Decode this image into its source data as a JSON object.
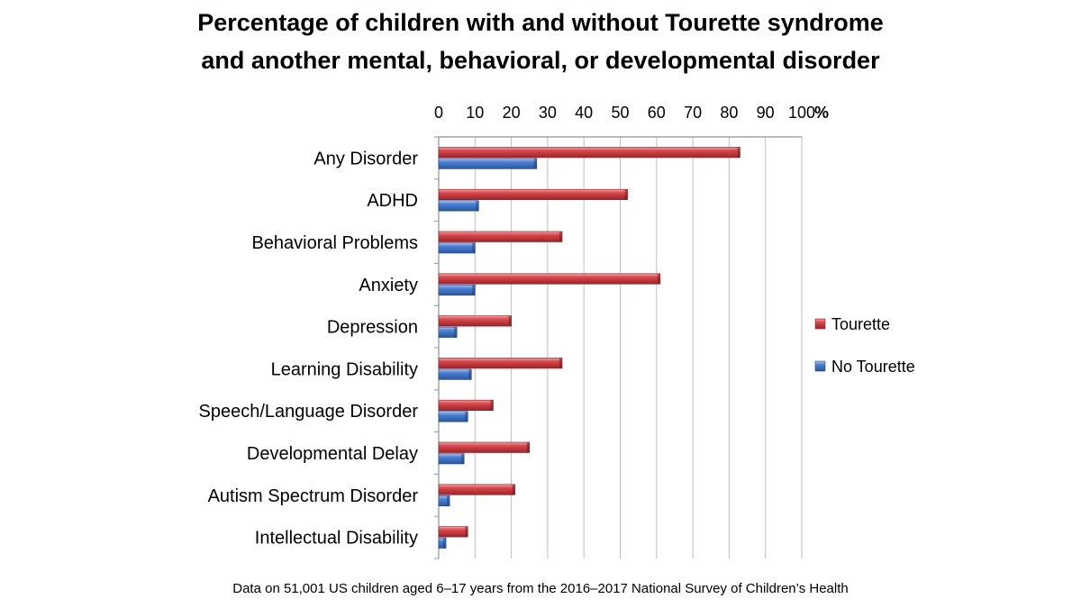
{
  "chart_data": {
    "type": "bar",
    "orientation": "horizontal",
    "title_line1": "Percentage of children with and without Tourette syndrome",
    "title_line2": "and another mental, behavioral, or developmental disorder",
    "unit_label": "%",
    "xlim": [
      0,
      100
    ],
    "ticks": [
      0,
      10,
      20,
      30,
      40,
      50,
      60,
      70,
      80,
      90,
      100
    ],
    "categories": [
      "Any Disorder",
      "ADHD",
      "Behavioral Problems",
      "Anxiety",
      "Depression",
      "Learning Disability",
      "Speech/Language Disorder",
      "Developmental Delay",
      "Autism Spectrum Disorder",
      "Intellectual Disability"
    ],
    "series": [
      {
        "name": "Tourette",
        "color": "#c0353a",
        "values": [
          83,
          52,
          34,
          61,
          20,
          34,
          15,
          25,
          21,
          8
        ]
      },
      {
        "name": "No Tourette",
        "color": "#3a6fc4",
        "values": [
          27,
          11,
          10,
          10,
          5,
          9,
          8,
          7,
          3,
          2
        ]
      }
    ],
    "legend_position": "right",
    "grid": true,
    "footnote": "Data on 51,001 US children aged 6–17 years from the 2016–2017 National Survey of Children’s Health"
  }
}
